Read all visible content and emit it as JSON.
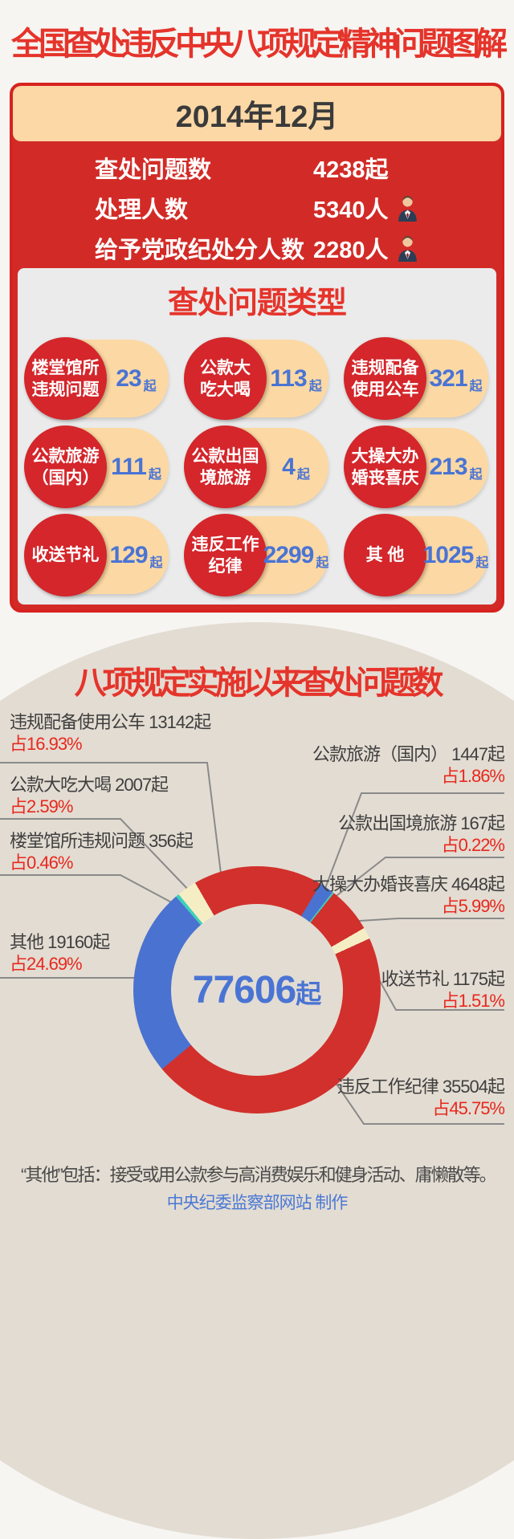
{
  "page": {
    "title": "全国查处违反中央八项规定精神问题图解"
  },
  "monthly_card": {
    "period": "2014年12月",
    "stats": [
      {
        "label": "查处问题数",
        "value": "4238起"
      },
      {
        "label": "处理人数",
        "value": "5340人"
      },
      {
        "label": "给予党政纪处分人数",
        "value": "2280人"
      }
    ],
    "types": {
      "title": "查处问题类型",
      "unit": "起",
      "items": [
        {
          "line1": "楼堂馆所",
          "line2": "违规问题",
          "value": "23",
          "unit": "起"
        },
        {
          "line1": "公款大",
          "line2": "吃大喝",
          "value": "113",
          "unit": "起"
        },
        {
          "line1": "违规配备",
          "line2": "使用公车",
          "value": "321",
          "unit": "起"
        },
        {
          "line1": "公款旅游",
          "line2": "（国内）",
          "value": "111",
          "unit": "起"
        },
        {
          "line1": "公款出国",
          "line2": "境旅游",
          "value": "4",
          "unit": "起"
        },
        {
          "line1": "大操大办",
          "line2": "婚丧喜庆",
          "value": "213",
          "unit": "起"
        },
        {
          "line1": "收送节礼",
          "line2": "",
          "value": "129",
          "unit": "起"
        },
        {
          "line1": "违反工作",
          "line2": "纪律",
          "value": "2299",
          "unit": "起"
        },
        {
          "line1": "其 他",
          "line2": "",
          "value": "1025",
          "unit": "起"
        }
      ]
    }
  },
  "chart_data": {
    "type": "pie",
    "subtype": "donut",
    "title": "八项规定实施以来查处问题数",
    "total": 77606,
    "center_value": "77606",
    "center_unit": "起",
    "start_angle_deg": -30,
    "order": "clockwise",
    "legend_position": "callout-labels",
    "segments": [
      {
        "name": "违规配备使用公车",
        "count": 13142,
        "pct": 16.93,
        "color": "#d2302c"
      },
      {
        "name": "公款旅游（国内）",
        "count": 1447,
        "pct": 1.86,
        "color": "#4a72d0"
      },
      {
        "name": "公款出国境旅游",
        "count": 167,
        "pct": 0.22,
        "color": "#3ed0b9"
      },
      {
        "name": "大操大办婚丧喜庆",
        "count": 4648,
        "pct": 5.99,
        "color": "#d2302c"
      },
      {
        "name": "收送节礼",
        "count": 1175,
        "pct": 1.51,
        "color": "#f5eec5"
      },
      {
        "name": "违反工作纪律",
        "count": 35504,
        "pct": 45.75,
        "color": "#d2302c"
      },
      {
        "name": "其他",
        "count": 19160,
        "pct": 24.69,
        "color": "#4a72d0"
      },
      {
        "name": "楼堂馆所违规问题",
        "count": 356,
        "pct": 0.46,
        "color": "#3ed0b9"
      },
      {
        "name": "公款大吃大喝",
        "count": 2007,
        "pct": 2.59,
        "color": "#f5eec5"
      }
    ]
  },
  "chart_labels": {
    "car": {
      "text": "违规配备使用公车 13142起",
      "pct": "占16.93%"
    },
    "dining": {
      "text": "公款大吃大喝 2007起",
      "pct": "占2.59%"
    },
    "buildings": {
      "text": "楼堂馆所违规问题 356起",
      "pct": "占0.46%"
    },
    "other": {
      "text": "其他 19160起",
      "pct": "占24.69%"
    },
    "travel_dom": {
      "text": "公款旅游（国内） 1447起",
      "pct": "占1.86%"
    },
    "travel_abroad": {
      "text": "公款出国境旅游 167起",
      "pct": "占0.22%"
    },
    "weddings": {
      "text": "大操大办婚丧喜庆 4648起",
      "pct": "占5.99%"
    },
    "gifts": {
      "text": "收送节礼 1175起",
      "pct": "占1.51%"
    },
    "discipline": {
      "text": "违反工作纪律 35504起",
      "pct": "占45.75%"
    }
  },
  "footer": {
    "note": "“其他”包括：接受或用公款参与高消费娱乐和健身活动、庸懒散等。",
    "credit": "中央纪委监察部网站 制作"
  },
  "colors": {
    "page_bg": "#f6f5f2",
    "title_red": "#e5342b",
    "card_red": "#d22b27",
    "card_border_red": "#d6231f",
    "peach": "#fbd8a5",
    "panel_gray": "#ebebeb",
    "pill_peach": "#fcd9a4",
    "pill_circle_red": "#d4262b",
    "number_blue": "#4a74d4",
    "beige": "#e3dcd2",
    "label_dark": "#3f3f3f",
    "pct_red": "#e8281e",
    "leader_gray": "#8a8a8a",
    "footer_blue": "#4a79d6"
  }
}
